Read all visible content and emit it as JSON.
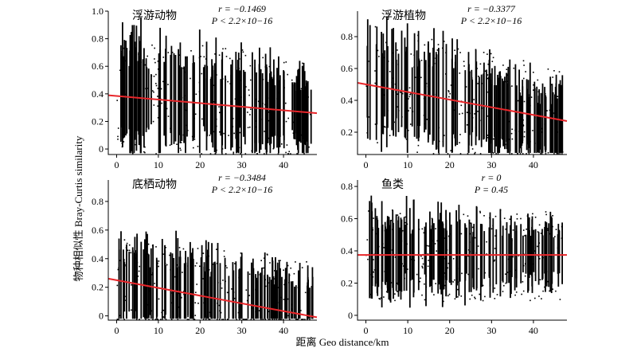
{
  "figure": {
    "ylabel": "物种相似性 Bray-Curtis similarity",
    "xlabel": "距离 Geo distance/km"
  },
  "chart_data": [
    {
      "type": "scatter",
      "title": "浮游动物",
      "r_text": "r = −0.1469",
      "p_text": "P < 2.2×10−16",
      "xlim": [
        -2,
        48
      ],
      "ylim": [
        -0.04,
        1.0
      ],
      "xticks": [
        0,
        10,
        20,
        30,
        40
      ],
      "yticks": [
        0,
        0.2,
        0.4,
        0.6,
        0.8,
        1.0
      ],
      "ytick_labels": [
        "0",
        "0.2",
        "0.4",
        "0.6",
        "0.8",
        "1.0"
      ],
      "regression": {
        "x": [
          -2,
          48
        ],
        "y": [
          0.39,
          0.26
        ]
      },
      "scatter_profile": {
        "x_range": [
          0,
          47
        ],
        "y_center_at_x0": 0.39,
        "y_center_at_xmax": 0.26,
        "y_spread": 0.62,
        "point_color": "#000000"
      },
      "line_color": "#e8262a"
    },
    {
      "type": "scatter",
      "title": "浮游植物",
      "r_text": "r = −0.3377",
      "p_text": "P < 2.2×10−16",
      "xlim": [
        -2,
        48
      ],
      "ylim": [
        0.06,
        0.96
      ],
      "xticks": [
        0,
        10,
        20,
        30,
        40
      ],
      "yticks": [
        0.2,
        0.4,
        0.6,
        0.8
      ],
      "ytick_labels": [
        "0.2",
        "0.4",
        "0.6",
        "0.8"
      ],
      "regression": {
        "x": [
          -2,
          48
        ],
        "y": [
          0.51,
          0.27
        ]
      },
      "scatter_profile": {
        "x_range": [
          0,
          47
        ],
        "y_center_at_x0": 0.52,
        "y_center_at_xmax": 0.22,
        "y_spread": 0.55,
        "point_color": "#000000"
      },
      "line_color": "#e8262a"
    },
    {
      "type": "scatter",
      "title": "底栖动物",
      "r_text": "r = −0.3484",
      "p_text": "P < 2.2×10−16",
      "xlim": [
        -2,
        48
      ],
      "ylim": [
        -0.03,
        0.95
      ],
      "xticks": [
        0,
        10,
        20,
        30,
        40
      ],
      "yticks": [
        0,
        0.2,
        0.4,
        0.6,
        0.8
      ],
      "ytick_labels": [
        "0",
        "0.2",
        "0.4",
        "0.6",
        "0.8"
      ],
      "regression": {
        "x": [
          -2,
          48
        ],
        "y": [
          0.26,
          -0.01
        ]
      },
      "scatter_profile": {
        "x_range": [
          0,
          47
        ],
        "y_center_at_x0": 0.22,
        "y_center_at_xmax": 0.06,
        "y_spread": 0.5,
        "point_color": "#000000"
      },
      "line_color": "#e8262a"
    },
    {
      "type": "scatter",
      "title": "鱼类",
      "r_text": "r = 0",
      "p_text": "P = 0.45",
      "xlim": [
        -2,
        48
      ],
      "ylim": [
        -0.03,
        0.84
      ],
      "xticks": [
        0,
        10,
        20,
        30,
        40
      ],
      "yticks": [
        0,
        0.2,
        0.4,
        0.6,
        0.8
      ],
      "ytick_labels": [
        "0",
        "0.2",
        "0.4",
        "0.6",
        "0.8"
      ],
      "regression": {
        "x": [
          -2,
          48
        ],
        "y": [
          0.375,
          0.375
        ]
      },
      "scatter_profile": {
        "x_range": [
          0,
          47
        ],
        "y_center_at_x0": 0.37,
        "y_center_at_xmax": 0.37,
        "y_spread": 0.42,
        "point_color": "#000000"
      },
      "line_color": "#e8262a"
    }
  ]
}
